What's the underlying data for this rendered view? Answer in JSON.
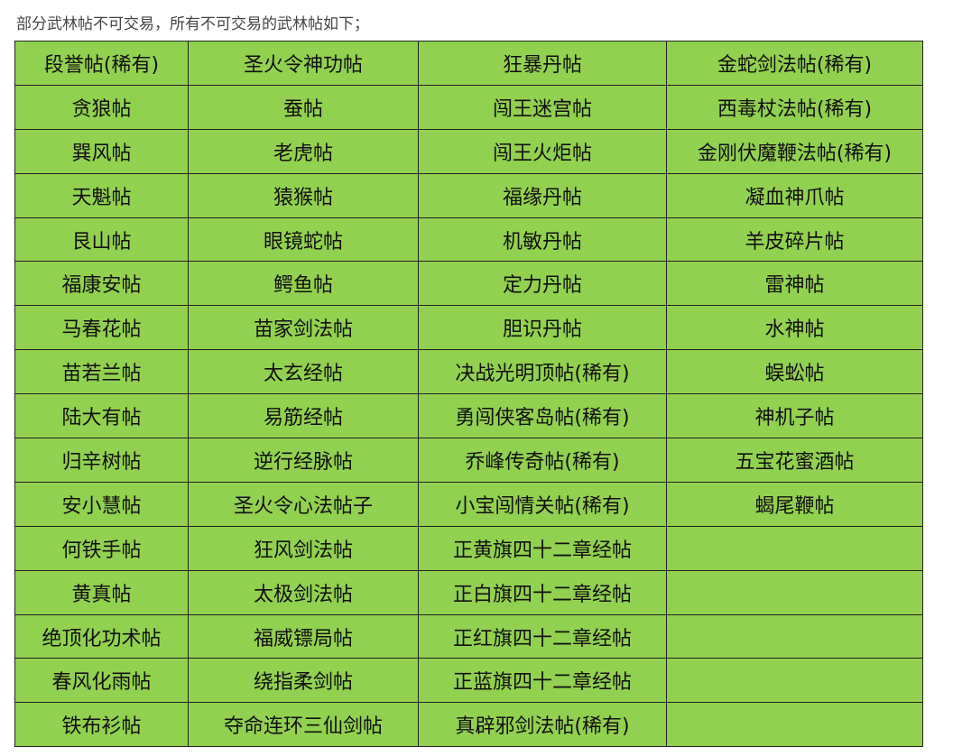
{
  "intro": "部分武林帖不可交易，所有不可交易的武林帖如下；",
  "colors": {
    "cell_background": "#92d050",
    "border": "#222222"
  },
  "table": {
    "rows": [
      [
        "段誉帖(稀有)",
        "圣火令神功帖",
        "狂暴丹帖",
        "金蛇剑法帖(稀有)"
      ],
      [
        "贪狼帖",
        "蚕帖",
        "闯王迷宫帖",
        "西毒杖法帖(稀有)"
      ],
      [
        "巽风帖",
        "老虎帖",
        "闯王火炬帖",
        "金刚伏魔鞭法帖(稀有)"
      ],
      [
        "天魁帖",
        "猿猴帖",
        "福缘丹帖",
        "凝血神爪帖"
      ],
      [
        "艮山帖",
        "眼镜蛇帖",
        "机敏丹帖",
        "羊皮碎片帖"
      ],
      [
        "福康安帖",
        "鳄鱼帖",
        "定力丹帖",
        "雷神帖"
      ],
      [
        "马春花帖",
        "苗家剑法帖",
        "胆识丹帖",
        "水神帖"
      ],
      [
        "苗若兰帖",
        "太玄经帖",
        "决战光明顶帖(稀有)",
        "蜈蚣帖"
      ],
      [
        "陆大有帖",
        "易筋经帖",
        "勇闯侠客岛帖(稀有)",
        "神机子帖"
      ],
      [
        "归辛树帖",
        "逆行经脉帖",
        "乔峰传奇帖(稀有)",
        "五宝花蜜酒帖"
      ],
      [
        "安小慧帖",
        "圣火令心法帖子",
        "小宝闯情关帖(稀有)",
        "蝎尾鞭帖"
      ],
      [
        "何铁手帖",
        "狂风剑法帖",
        "正黄旗四十二章经帖",
        ""
      ],
      [
        "黄真帖",
        "太极剑法帖",
        "正白旗四十二章经帖",
        ""
      ],
      [
        "绝顶化功术帖",
        "福威镖局帖",
        "正红旗四十二章经帖",
        ""
      ],
      [
        "春风化雨帖",
        "绕指柔剑帖",
        "正蓝旗四十二章经帖",
        ""
      ],
      [
        "铁布衫帖",
        "夺命连环三仙剑帖",
        "真辟邪剑法帖(稀有)",
        ""
      ]
    ]
  }
}
